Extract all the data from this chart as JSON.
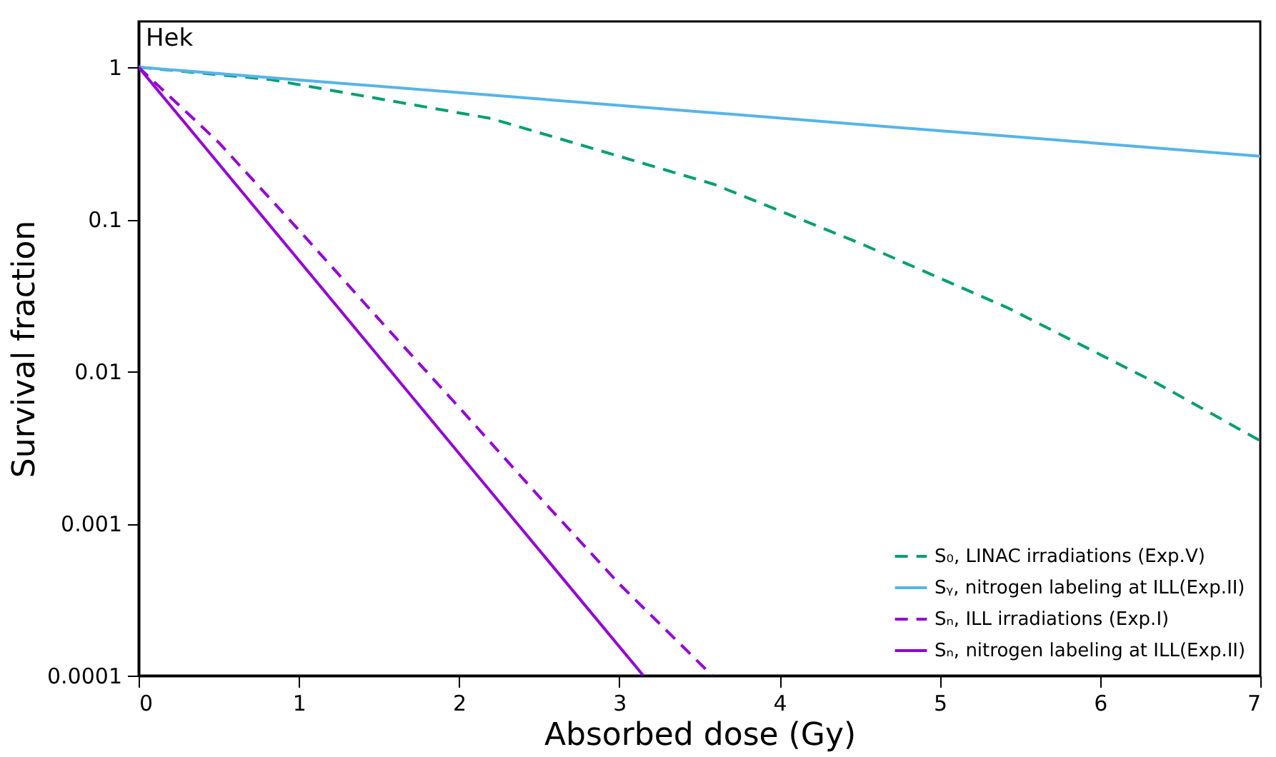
{
  "chart_data": {
    "type": "line",
    "xlabel": "Absorbed dose (Gy)",
    "ylabel": "Survival fraction",
    "annotations": [
      "Hek"
    ],
    "xlim": [
      0,
      7
    ],
    "xticks": [
      0,
      1,
      2,
      3,
      4,
      5,
      6,
      7
    ],
    "ylim": [
      0.0001,
      2
    ],
    "yticks": [
      1,
      0.1,
      0.01,
      0.001,
      0.0001
    ],
    "log": "y",
    "grid": false,
    "legend": "bottom right",
    "marker": "none",
    "series": [
      {
        "name": "S₀, LINAC irradiations (Exp.V)",
        "color": "#009e73",
        "line_style": "dashed",
        "x": [
          0,
          0.82,
          2.2,
          3.59,
          4.51,
          5.43,
          6.36,
          7
        ],
        "values": [
          1,
          0.83,
          0.46,
          0.17,
          0.069,
          0.026,
          0.0083,
          0.0035
        ]
      },
      {
        "name": "Sᵧ, nitrogen labeling at ILL(Exp.II)",
        "color": "#56b4e9",
        "line_style": "solid",
        "x": [
          0,
          3.5,
          7
        ],
        "values": [
          1,
          0.51,
          0.26
        ]
      },
      {
        "name": "Sₙ, ILL irradiations (Exp.I)",
        "color": "#9400d3",
        "line_style": "dashed",
        "x": [
          0,
          0.5,
          1,
          1.5,
          2,
          2.5,
          3,
          3.58
        ],
        "values": [
          1,
          0.32,
          0.085,
          0.022,
          0.0058,
          0.0015,
          0.0004,
          0.0001
        ]
      },
      {
        "name": "Sₙ, nitrogen labeling at ILL(Exp.II)",
        "color": "#9400d3",
        "line_style": "solid",
        "x": [
          0,
          1.575,
          3.15
        ],
        "values": [
          1,
          0.01,
          0.0001
        ]
      }
    ]
  }
}
